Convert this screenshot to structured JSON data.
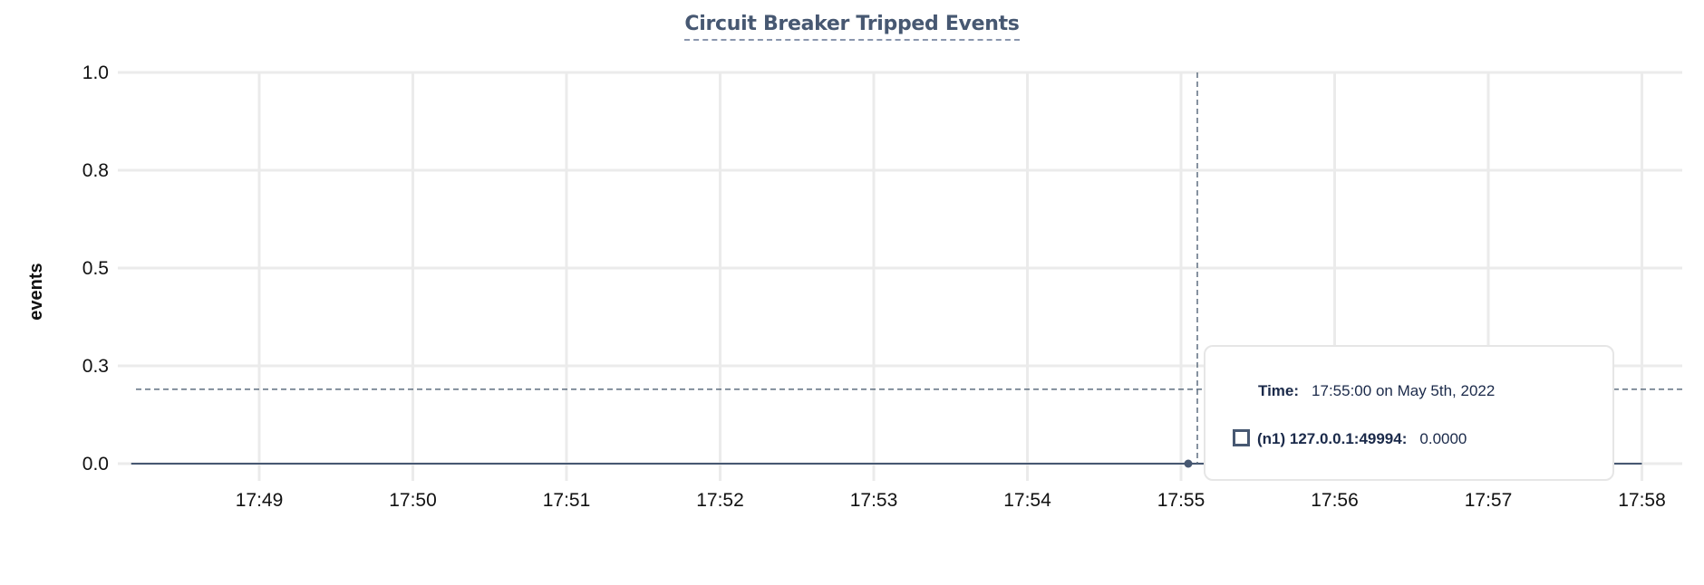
{
  "chart_data": {
    "type": "line",
    "title": "Circuit Breaker Tripped Events",
    "ylabel": "events",
    "xlabel": "",
    "ylim": [
      0,
      1.0
    ],
    "y_ticks": [
      "0.0",
      "0.3",
      "0.5",
      "0.8",
      "1.0"
    ],
    "y_tick_values": [
      0,
      0.25,
      0.5,
      0.75,
      1.0
    ],
    "x_ticks": [
      "17:49",
      "17:50",
      "17:51",
      "17:52",
      "17:53",
      "17:54",
      "17:55",
      "17:56",
      "17:57",
      "17:58"
    ],
    "xlim": [
      "17:48:00",
      "17:58:15"
    ],
    "grid": true,
    "series": [
      {
        "name": "(n1) 127.0.0.1:49994",
        "color": "#475872",
        "x": [
          "17:48:10",
          "17:58:00"
        ],
        "y": [
          0,
          0
        ]
      }
    ],
    "hover": {
      "x": "17:55:00",
      "y": 0,
      "crosshair_y": 0.19
    }
  },
  "tooltip": {
    "time_label": "Time:",
    "time_value": "17:55:00 on May 5th, 2022",
    "series_label": "(n1) 127.0.0.1:49994:",
    "series_value": "0.0000"
  },
  "colors": {
    "series": "#475872",
    "grid": "#ebebeb",
    "title": "#475872",
    "crosshair": "#5f6f80"
  }
}
